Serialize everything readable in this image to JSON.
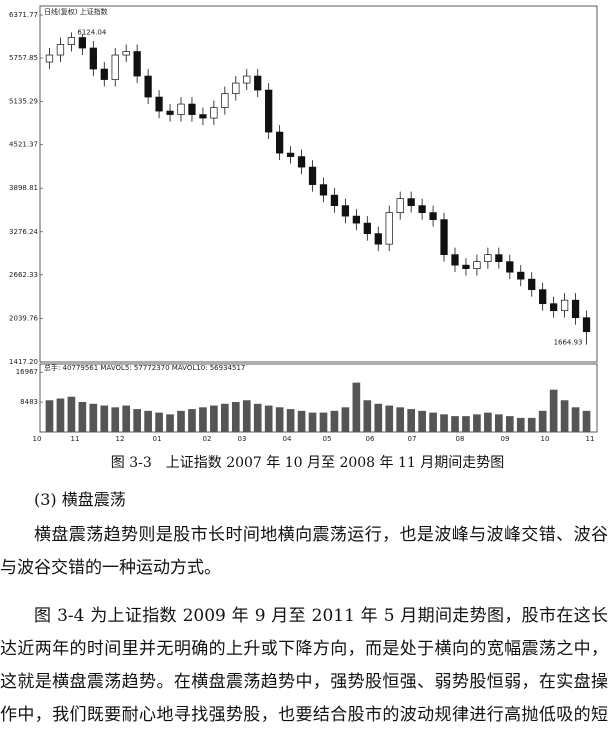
{
  "chart_data": {
    "type": "candlestick",
    "title": "日线(复权)  上证指数",
    "ylim": [
      1417.2,
      6371.77
    ],
    "yticks": [
      {
        "value": 1417.2,
        "label": "1417.20"
      },
      2039.76,
      2662.33,
      3276.24,
      3898.81,
      4521.37,
      5135.29,
      5757.85,
      6371.77
    ],
    "xtick_labels": [
      "10",
      "11",
      "12",
      "01",
      "02",
      "03",
      "04",
      "05",
      "06",
      "07",
      "08",
      "09",
      "10",
      "11"
    ],
    "up_color": "#ffffff",
    "down_color": "#111111",
    "open": [
      5700,
      5800,
      5950,
      6050,
      5900,
      5600,
      5450,
      5800,
      5850,
      5500,
      5200,
      5000,
      4950,
      5100,
      4950,
      4900,
      5050,
      5250,
      5400,
      5500,
      5300,
      4700,
      4400,
      4350,
      4200,
      3950,
      3800,
      3650,
      3500,
      3400,
      3250,
      3100,
      3550,
      3750,
      3650,
      3550,
      3450,
      2950,
      2800,
      2750,
      2850,
      2950,
      2850,
      2700,
      2600,
      2450,
      2250,
      2150,
      2300,
      2050
    ],
    "high": [
      5900,
      6050,
      6124.04,
      6100,
      6000,
      5700,
      5900,
      5950,
      5950,
      5600,
      5300,
      5100,
      5200,
      5200,
      5050,
      5150,
      5350,
      5500,
      5600,
      5600,
      5400,
      4800,
      4500,
      4450,
      4300,
      4050,
      3900,
      3750,
      3600,
      3500,
      3350,
      3650,
      3850,
      3850,
      3750,
      3650,
      3550,
      3050,
      2900,
      2950,
      3050,
      3050,
      2950,
      2800,
      2700,
      2550,
      2350,
      2400,
      2400,
      2150
    ],
    "low": [
      5600,
      5700,
      5850,
      5800,
      5500,
      5350,
      5350,
      5700,
      5400,
      5100,
      4900,
      4850,
      4850,
      4850,
      4800,
      4800,
      4950,
      5150,
      5300,
      5200,
      4600,
      4300,
      4250,
      4100,
      3850,
      3700,
      3550,
      3400,
      3300,
      3150,
      3000,
      3000,
      3450,
      3550,
      3450,
      3350,
      2850,
      2700,
      2650,
      2650,
      2750,
      2750,
      2600,
      2500,
      2350,
      2150,
      2050,
      2050,
      1950,
      1664.93
    ],
    "close": [
      5800,
      5950,
      6050,
      5900,
      5600,
      5450,
      5800,
      5850,
      5500,
      5200,
      5000,
      4950,
      5100,
      4950,
      4900,
      5050,
      5250,
      5400,
      5500,
      5300,
      4700,
      4400,
      4350,
      4200,
      3950,
      3800,
      3650,
      3500,
      3400,
      3250,
      3100,
      3550,
      3750,
      3650,
      3550,
      3450,
      2950,
      2800,
      2750,
      2850,
      2950,
      2850,
      2700,
      2600,
      2450,
      2250,
      2150,
      2300,
      2050,
      1850
    ],
    "volume_legend": "总手: 40779561  MAVOL5: 57772370  MAVOL10: 56934517",
    "volume_ylim": [
      0,
      19000
    ],
    "volume_yticks": [
      8483,
      16967
    ],
    "volume_color": "#555555",
    "volume": [
      9000,
      9500,
      10000,
      8500,
      8000,
      7500,
      7000,
      7500,
      6500,
      6000,
      5500,
      5000,
      6000,
      6500,
      7000,
      7500,
      8000,
      8500,
      9000,
      8000,
      7500,
      7000,
      6500,
      6000,
      5500,
      5500,
      6000,
      7000,
      14000,
      9000,
      8000,
      7500,
      7000,
      6500,
      6000,
      5500,
      5000,
      4500,
      4500,
      5000,
      5500,
      5000,
      4500,
      4000,
      4000,
      6000,
      12000,
      9000,
      7000,
      6000
    ]
  },
  "caption": "图 3-3　上证指数 2007 年 10 月至 2008 年 11 月期间走势图",
  "heading": "(3)  横盘震荡",
  "paragraphs": [
    "横盘震荡趋势则是股市长时间地横向震荡运行，也是波峰与波峰交错、波谷与波谷交错的一种运动方式。",
    "图 3-4 为上证指数 2009 年 9 月至 2011 年 5 月期间走势图，股市在这长达近两年的时间里并无明确的上升或下降方向，而是处于横向的宽幅震荡之中，这就是横盘震荡趋势。在横盘震荡趋势中，强势股恒强、弱势股恒弱，在实盘操作中，我们既要耐心地寻找强势股，也要结合股市的波动规律进行高抛低吸的短线操作。"
  ]
}
